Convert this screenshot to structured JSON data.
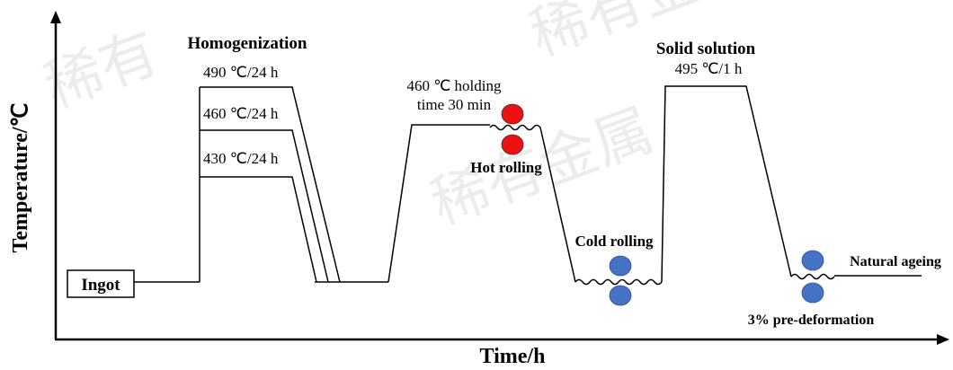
{
  "axes": {
    "y_label": "Temperature/℃",
    "x_label": "Time/h"
  },
  "watermark": {
    "text_top": "稀有金属材料",
    "text_left": "稀有",
    "text_mid": "稀有金属",
    "color": "#ececec"
  },
  "stages": {
    "ingot": "Ingot",
    "homogenization": "Homogenization",
    "homo_490": "490 ℃/24 h",
    "homo_460": "460 ℃/24 h",
    "homo_430": "430 ℃/24 h",
    "holding_line1": "460 ℃ holding",
    "holding_line2": "time 30 min",
    "hot_rolling": "Hot rolling",
    "cold_rolling": "Cold rolling",
    "solid_solution": "Solid solution",
    "solid_solution_temp": "495 ℃/1 h",
    "natural_ageing": "Natural ageing",
    "pre_deformation": "3% pre-deformation"
  },
  "colors": {
    "hot_roll": "#ee1111",
    "cold_roll": "#4472c4",
    "line": "#000000"
  }
}
